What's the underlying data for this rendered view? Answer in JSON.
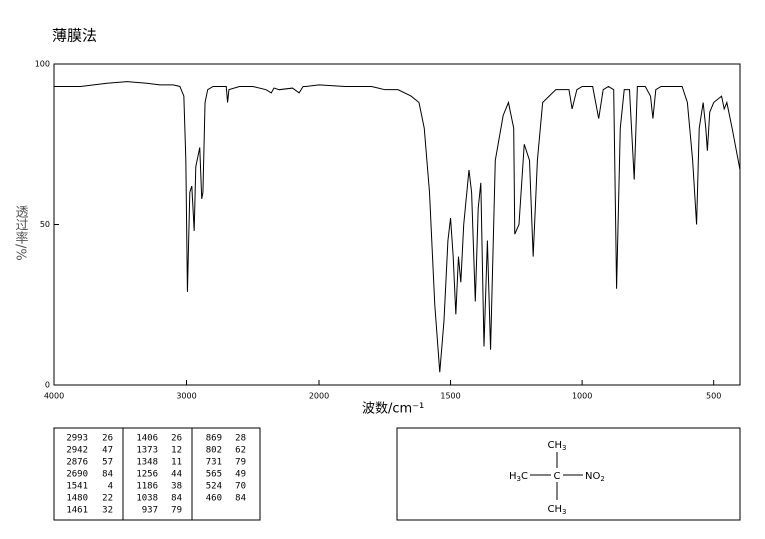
{
  "chart_data": {
    "type": "line",
    "title": "薄膜法",
    "x_label": "波数/cm⁻¹",
    "y_label": "透过率/%",
    "xlim": [
      4000,
      400
    ],
    "xbreak": 2000,
    "xticks": [
      4000,
      3000,
      2000,
      1500,
      1000,
      500
    ],
    "ylim": [
      0,
      100
    ],
    "yticks": [
      0,
      50,
      100
    ],
    "x": [
      4000,
      3800,
      3600,
      3450,
      3300,
      3200,
      3100,
      3050,
      3020,
      3005,
      2993,
      2975,
      2960,
      2942,
      2930,
      2910,
      2900,
      2885,
      2876,
      2860,
      2840,
      2800,
      2700,
      2690,
      2680,
      2600,
      2500,
      2400,
      2360,
      2340,
      2300,
      2200,
      2150,
      2120,
      2100,
      2000,
      1900,
      1800,
      1750,
      1700,
      1650,
      1620,
      1600,
      1580,
      1560,
      1541,
      1525,
      1510,
      1500,
      1490,
      1480,
      1470,
      1461,
      1450,
      1430,
      1420,
      1406,
      1395,
      1385,
      1373,
      1360,
      1348,
      1330,
      1300,
      1280,
      1260,
      1256,
      1240,
      1220,
      1200,
      1186,
      1170,
      1150,
      1100,
      1050,
      1038,
      1020,
      1000,
      960,
      937,
      920,
      900,
      880,
      869,
      855,
      840,
      820,
      802,
      790,
      760,
      740,
      731,
      720,
      700,
      620,
      600,
      580,
      565,
      555,
      540,
      530,
      524,
      515,
      500,
      470,
      460,
      450,
      430,
      400
    ],
    "series": [
      {
        "color": "#000000",
        "values": [
          93,
          93,
          94,
          94.5,
          94,
          93.5,
          93.5,
          93,
          90,
          70,
          29,
          60,
          62,
          48,
          68,
          72,
          74,
          58,
          60,
          88,
          92,
          93,
          93,
          88,
          92,
          93,
          93,
          92,
          91,
          92.5,
          92,
          92.5,
          91,
          93,
          93,
          93.5,
          93,
          93,
          92,
          92,
          90,
          88,
          80,
          60,
          25,
          4,
          20,
          45,
          52,
          40,
          22,
          40,
          32,
          50,
          67,
          60,
          26,
          55,
          63,
          12,
          45,
          11,
          70,
          84,
          88,
          80,
          47,
          50,
          75,
          70,
          40,
          70,
          88,
          92,
          92,
          86,
          92,
          93,
          93,
          83,
          92,
          93,
          92,
          30,
          80,
          92,
          92,
          64,
          93,
          93,
          90,
          83,
          92,
          93,
          93,
          88,
          70,
          50,
          80,
          88,
          80,
          73,
          85,
          88,
          90,
          86,
          88,
          80,
          67
        ]
      }
    ],
    "peak_table": [
      [
        [
          2993,
          26
        ],
        [
          2942,
          47
        ],
        [
          2876,
          57
        ],
        [
          2690,
          84
        ],
        [
          1541,
          4
        ],
        [
          1480,
          22
        ],
        [
          1461,
          32
        ]
      ],
      [
        [
          1406,
          26
        ],
        [
          1373,
          12
        ],
        [
          1348,
          11
        ],
        [
          1256,
          44
        ],
        [
          1186,
          38
        ],
        [
          1038,
          84
        ],
        [
          937,
          79
        ]
      ],
      [
        [
          869,
          28
        ],
        [
          802,
          62
        ],
        [
          731,
          79
        ],
        [
          565,
          49
        ],
        [
          524,
          70
        ],
        [
          460,
          84
        ]
      ]
    ],
    "structure": {
      "top": [
        "CH",
        "3"
      ],
      "left": [
        "H",
        "3",
        "C"
      ],
      "center": [
        "C"
      ],
      "right": [
        "NO",
        "2"
      ],
      "bottom": [
        "CH",
        "3"
      ]
    }
  }
}
